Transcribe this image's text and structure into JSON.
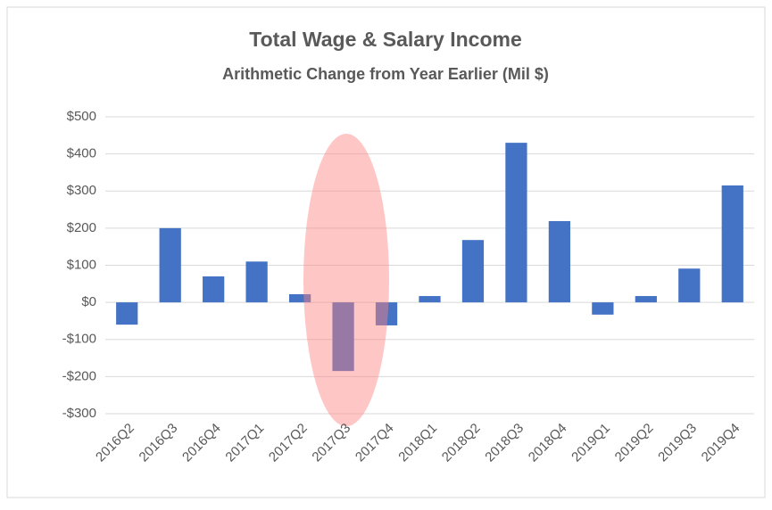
{
  "chart_data": {
    "type": "bar",
    "title": "Total Wage & Salary Income",
    "subtitle": "Arithmetic Change from Year Earlier (Mil $)",
    "categories": [
      "2016Q2",
      "2016Q3",
      "2016Q4",
      "2017Q1",
      "2017Q2",
      "2017Q3",
      "2017Q4",
      "2018Q1",
      "2018Q2",
      "2018Q3",
      "2018Q4",
      "2019Q1",
      "2019Q2",
      "2019Q3",
      "2019Q4"
    ],
    "values": [
      -60,
      200,
      70,
      110,
      22,
      -185,
      -62,
      17,
      168,
      430,
      219,
      -33,
      17,
      91,
      315
    ],
    "color": "#4472c4",
    "ylim": [
      -300,
      500
    ],
    "yticks": [
      {
        "value": -300,
        "label": "-$300"
      },
      {
        "value": -200,
        "label": "-$200"
      },
      {
        "value": -100,
        "label": "-$100"
      },
      {
        "value": 0,
        "label": "$0"
      },
      {
        "value": 100,
        "label": "$100"
      },
      {
        "value": 200,
        "label": "$200"
      },
      {
        "value": 300,
        "label": "$300"
      },
      {
        "value": 400,
        "label": "$400"
      },
      {
        "value": 500,
        "label": "$500"
      }
    ],
    "grid": true
  }
}
